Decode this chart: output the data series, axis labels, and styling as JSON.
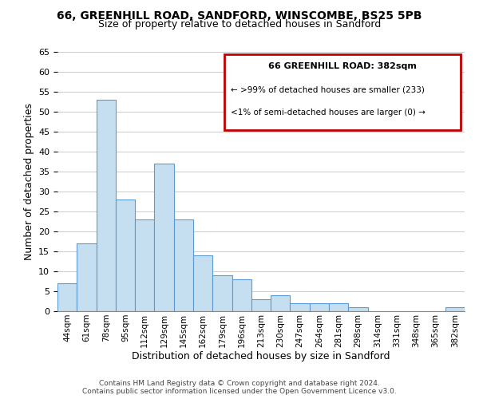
{
  "title1": "66, GREENHILL ROAD, SANDFORD, WINSCOMBE, BS25 5PB",
  "title2": "Size of property relative to detached houses in Sandford",
  "xlabel": "Distribution of detached houses by size in Sandford",
  "ylabel": "Number of detached properties",
  "categories": [
    "44sqm",
    "61sqm",
    "78sqm",
    "95sqm",
    "112sqm",
    "129sqm",
    "145sqm",
    "162sqm",
    "179sqm",
    "196sqm",
    "213sqm",
    "230sqm",
    "247sqm",
    "264sqm",
    "281sqm",
    "298sqm",
    "314sqm",
    "331sqm",
    "348sqm",
    "365sqm",
    "382sqm"
  ],
  "values": [
    7,
    17,
    53,
    28,
    23,
    37,
    23,
    14,
    9,
    8,
    3,
    4,
    2,
    2,
    2,
    1,
    0,
    0,
    0,
    0,
    1
  ],
  "bar_color": "#c5dff0",
  "bar_edge_color": "#5b9bd5",
  "highlight_box_color": "#c00000",
  "ylim": [
    0,
    65
  ],
  "yticks": [
    0,
    5,
    10,
    15,
    20,
    25,
    30,
    35,
    40,
    45,
    50,
    55,
    60,
    65
  ],
  "annotation_title": "66 GREENHILL ROAD: 382sqm",
  "annotation_line1": "← >99% of detached houses are smaller (233)",
  "annotation_line2": "<1% of semi-detached houses are larger (0) →",
  "footer1": "Contains HM Land Registry data © Crown copyright and database right 2024.",
  "footer2": "Contains public sector information licensed under the Open Government Licence v3.0.",
  "background_color": "#ffffff",
  "grid_color": "#cccccc"
}
